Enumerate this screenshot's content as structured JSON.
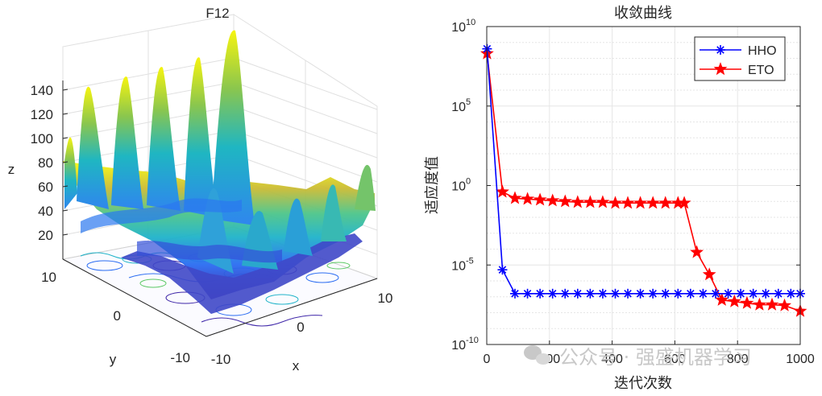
{
  "chart_data": [
    {
      "type": "surface3d",
      "title": "F12",
      "xlabel": "x",
      "ylabel": "y",
      "zlabel": "z",
      "xlim": [
        -10,
        10
      ],
      "ylim": [
        -10,
        10
      ],
      "zlim": [
        0,
        150
      ],
      "xticks": [
        "-10",
        "0",
        "10"
      ],
      "yticks": [
        "-10",
        "0",
        "10"
      ],
      "zticks": [
        "20",
        "40",
        "60",
        "80",
        "100",
        "120",
        "140"
      ],
      "colormap": [
        "#3e26a8",
        "#2a7bf0",
        "#1fb3c9",
        "#5bc864",
        "#d8ba2c",
        "#f9fb0e"
      ],
      "has_contour_floor": true
    },
    {
      "type": "line",
      "title": "收敛曲线",
      "xlabel": "迭代次数",
      "ylabel": "适应度值",
      "yscale": "log",
      "xlim": [
        0,
        1000
      ],
      "ylim_exponent": [
        -10,
        10
      ],
      "grid": true,
      "legend_position": "top-right",
      "xticks": [
        "0",
        "200",
        "400",
        "600",
        "800",
        "1000"
      ],
      "yticks": [
        {
          "base": "10",
          "exp": "-10",
          "value": -10
        },
        {
          "base": "10",
          "exp": "-5",
          "value": -5
        },
        {
          "base": "10",
          "exp": "0",
          "value": 0
        },
        {
          "base": "10",
          "exp": "5",
          "value": 5
        },
        {
          "base": "10",
          "exp": "10",
          "value": 10
        }
      ],
      "series": [
        {
          "name": "HHO",
          "color": "#0000ff",
          "marker": "asterisk",
          "x": [
            1,
            50,
            90,
            130,
            170,
            210,
            250,
            290,
            330,
            370,
            410,
            450,
            490,
            530,
            570,
            610,
            650,
            690,
            730,
            770,
            810,
            850,
            890,
            930,
            970,
            1000
          ],
          "log10_y": [
            8.6,
            -5.3,
            -6.8,
            -6.8,
            -6.8,
            -6.8,
            -6.8,
            -6.8,
            -6.8,
            -6.8,
            -6.8,
            -6.8,
            -6.8,
            -6.8,
            -6.8,
            -6.8,
            -6.8,
            -6.8,
            -6.8,
            -6.8,
            -6.8,
            -6.8,
            -6.8,
            -6.8,
            -6.8,
            -6.8
          ]
        },
        {
          "name": "ETO",
          "color": "#ff0000",
          "marker": "pentagram",
          "x": [
            1,
            50,
            90,
            130,
            170,
            210,
            250,
            290,
            330,
            370,
            410,
            450,
            490,
            530,
            570,
            610,
            630,
            670,
            710,
            750,
            790,
            830,
            870,
            910,
            950,
            1000
          ],
          "log10_y": [
            8.3,
            -0.4,
            -0.8,
            -0.85,
            -0.9,
            -0.95,
            -1.0,
            -1.05,
            -1.05,
            -1.05,
            -1.1,
            -1.1,
            -1.1,
            -1.1,
            -1.1,
            -1.1,
            -1.1,
            -4.2,
            -5.6,
            -7.2,
            -7.3,
            -7.4,
            -7.5,
            -7.5,
            -7.55,
            -7.9
          ]
        }
      ]
    }
  ],
  "watermark": "公众号 · 强盛机器学习"
}
